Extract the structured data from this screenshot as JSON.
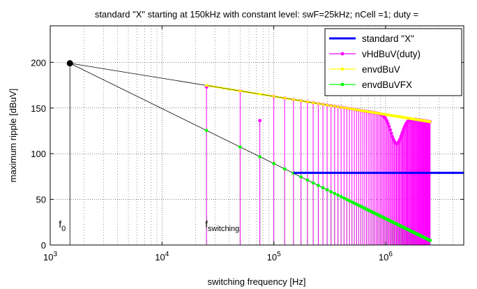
{
  "chart_data": {
    "type": "line",
    "title": "standard \"X\" starting at 150kHz with constant level: swF=25kHz; nCell =1; duty =",
    "xlabel": "switching frequency [Hz]",
    "ylabel": "maximum ripple  [dBuV]",
    "xscale": "log",
    "xlim": [
      1000,
      5000000
    ],
    "ylim": [
      0,
      240
    ],
    "grid": true,
    "legend_position": "top-right",
    "xticks": [
      {
        "value": 1000,
        "base": "10",
        "exp": "3"
      },
      {
        "value": 10000,
        "base": "10",
        "exp": "4"
      },
      {
        "value": 100000,
        "base": "10",
        "exp": "5"
      },
      {
        "value": 1000000,
        "base": "10",
        "exp": "6"
      }
    ],
    "yticks": [
      0,
      50,
      100,
      150,
      200
    ],
    "annotations": {
      "f0": {
        "main": "f",
        "sub": "0",
        "x": 1500
      },
      "fsw": {
        "main": "f",
        "sub": "switching",
        "x": 25000
      }
    },
    "f0_point": {
      "x": 1500,
      "y": 199
    },
    "fundamental_hz": 25000,
    "harmonics_count": 100,
    "standard_level": 79,
    "standard_start_hz": 150000,
    "envelope_high": {
      "x0": 1500,
      "y0": 199,
      "x1": 2500000,
      "y1": 135
    },
    "envelope_low": {
      "x0": 1500,
      "y0": 199,
      "x1": 2500000,
      "y1": 5
    },
    "vHd_levels": {
      "first": 173,
      "odd": 144
    },
    "vHd_notch": {
      "center_hz": 1250000,
      "depth_db": 30
    },
    "series": [
      {
        "name": "standard \"X\"",
        "color": "#0000ff"
      },
      {
        "name": "vHdBuV(duty)",
        "color": "#ff00ff"
      },
      {
        "name": "envdBuV",
        "color": "#ffff00"
      },
      {
        "name": "envdBuVFX",
        "color": "#00ff00"
      }
    ]
  }
}
